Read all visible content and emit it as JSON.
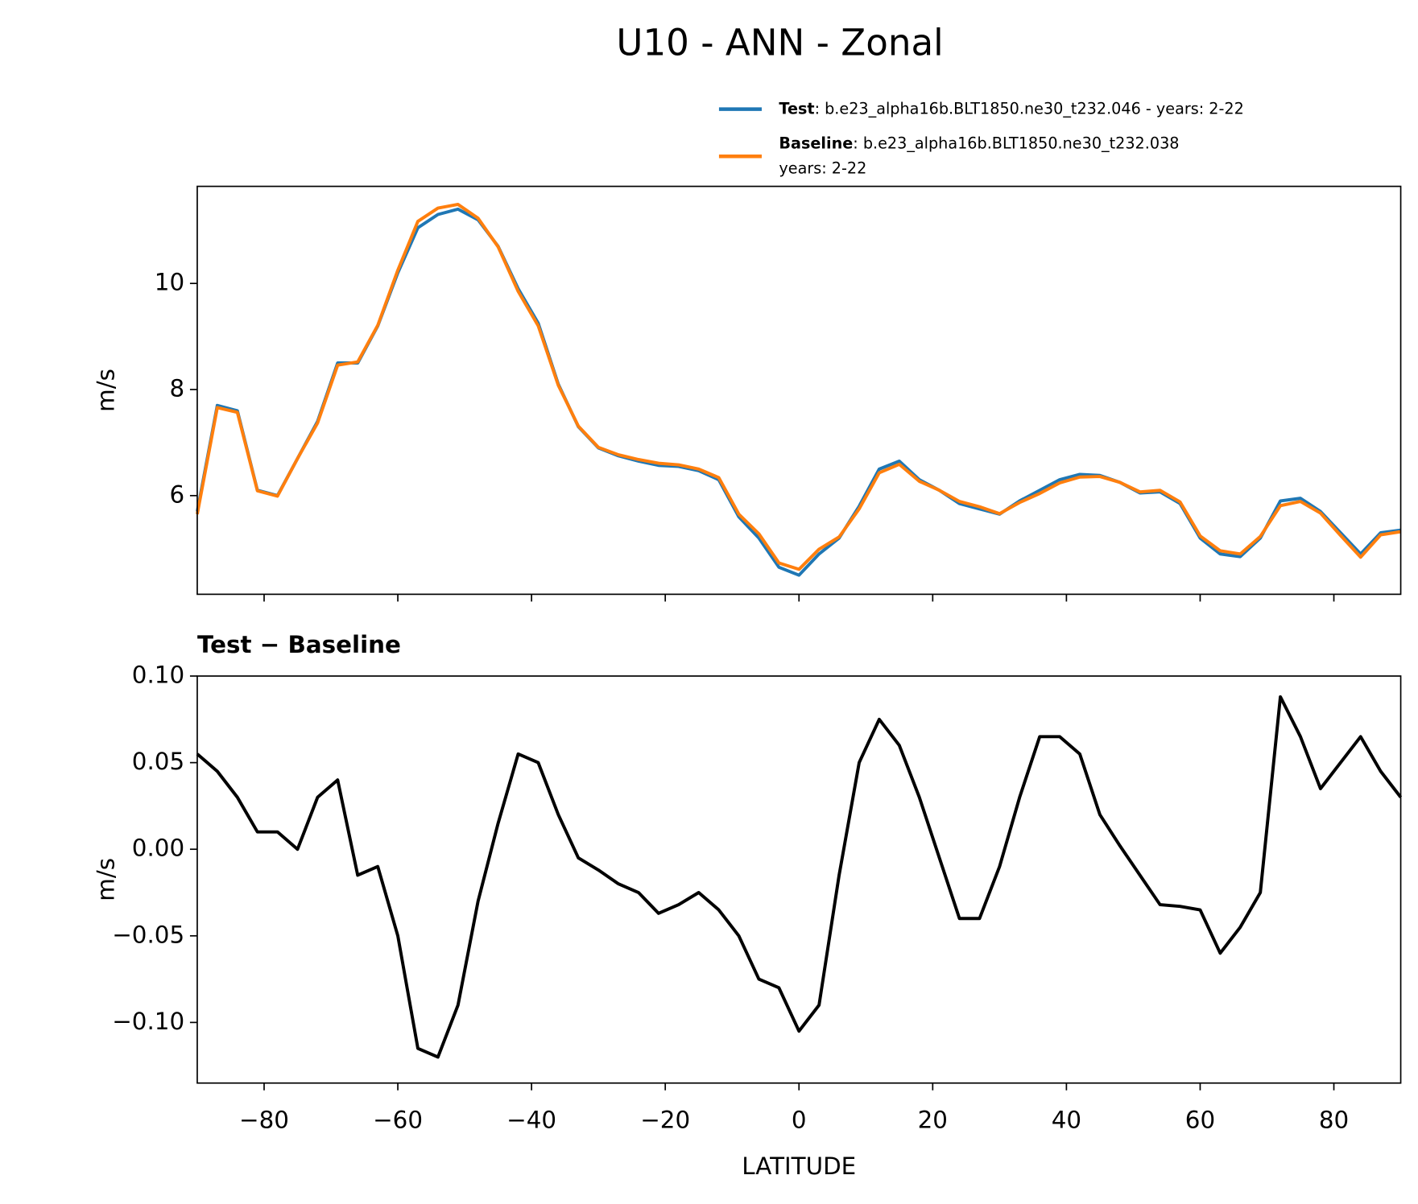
{
  "chart_data": [
    {
      "type": "line",
      "title": "U10 - ANN - Zonal",
      "ylabel": "m/s",
      "x": [
        -90,
        -87,
        -84,
        -81,
        -78,
        -75,
        -72,
        -69,
        -66,
        -63,
        -60,
        -57,
        -54,
        -51,
        -48,
        -45,
        -42,
        -39,
        -36,
        -33,
        -30,
        -27,
        -24,
        -21,
        -18,
        -15,
        -12,
        -9,
        -6,
        -3,
        0,
        3,
        6,
        9,
        12,
        15,
        18,
        21,
        24,
        27,
        30,
        33,
        36,
        39,
        42,
        45,
        48,
        51,
        54,
        57,
        60,
        63,
        66,
        69,
        72,
        75,
        78,
        81,
        84,
        87,
        90
      ],
      "series": [
        {
          "name": "Test",
          "color": "#1f77b4",
          "legend_text": [
            ": b.e23_alpha16b.BLT1850.ne30_t232.046 - years: 2-22"
          ],
          "values": [
            5.7,
            7.7,
            7.6,
            6.1,
            6.0,
            6.7,
            7.4,
            8.5,
            8.5,
            9.2,
            10.2,
            11.05,
            11.3,
            11.4,
            11.2,
            10.7,
            9.9,
            9.25,
            8.1,
            7.3,
            6.9,
            6.75,
            6.65,
            6.57,
            6.55,
            6.47,
            6.3,
            5.6,
            5.2,
            4.65,
            4.5,
            4.9,
            5.2,
            5.8,
            6.5,
            6.65,
            6.3,
            6.1,
            5.85,
            5.75,
            5.65,
            5.9,
            6.1,
            6.3,
            6.4,
            6.38,
            6.25,
            6.05,
            6.07,
            5.85,
            5.2,
            4.9,
            4.85,
            5.2,
            5.9,
            5.95,
            5.7,
            5.3,
            4.9,
            5.3,
            5.35
          ]
        },
        {
          "name": "Baseline",
          "color": "#ff7f0e",
          "legend_text": [
            ": b.e23_alpha16b.BLT1850.ne30_t232.038",
            "years: 2-22"
          ],
          "values": [
            5.65,
            7.66,
            7.57,
            6.09,
            5.99,
            6.7,
            7.37,
            8.46,
            8.52,
            9.21,
            10.25,
            11.17,
            11.42,
            11.49,
            11.23,
            10.69,
            9.85,
            9.2,
            8.08,
            7.31,
            6.91,
            6.77,
            6.68,
            6.61,
            6.58,
            6.5,
            6.34,
            5.65,
            5.28,
            4.73,
            4.61,
            4.99,
            5.22,
            5.75,
            6.43,
            6.59,
            6.27,
            6.1,
            5.89,
            5.79,
            5.66,
            5.87,
            6.04,
            6.24,
            6.35,
            6.36,
            6.25,
            6.07,
            6.1,
            5.88,
            5.24,
            4.96,
            4.9,
            5.23,
            5.81,
            5.89,
            5.67,
            5.25,
            4.84,
            5.26,
            5.32
          ]
        }
      ],
      "xlim": [
        -90,
        90
      ],
      "xticks": [
        -80,
        -60,
        -40,
        -20,
        0,
        20,
        40,
        60,
        80
      ],
      "ylim": [
        4.14,
        11.83
      ],
      "yticks": [
        6,
        8,
        10
      ],
      "legend": "upper right"
    },
    {
      "type": "line",
      "title": "Test − Baseline",
      "ylabel": "m/s",
      "xlabel": "LATITUDE",
      "x": [
        -90,
        -87,
        -84,
        -81,
        -78,
        -75,
        -72,
        -69,
        -66,
        -63,
        -60,
        -57,
        -54,
        -51,
        -48,
        -45,
        -42,
        -39,
        -36,
        -33,
        -30,
        -27,
        -24,
        -21,
        -18,
        -15,
        -12,
        -9,
        -6,
        -3,
        0,
        3,
        6,
        9,
        12,
        15,
        18,
        21,
        24,
        27,
        30,
        33,
        36,
        39,
        42,
        45,
        48,
        51,
        54,
        57,
        60,
        63,
        66,
        69,
        72,
        75,
        78,
        81,
        84,
        87,
        90
      ],
      "series": [
        {
          "color": "#000000",
          "values": [
            0.055,
            0.045,
            0.03,
            0.01,
            0.01,
            0,
            0.03,
            0.04,
            -0.015,
            -0.01,
            -0.05,
            -0.115,
            -0.12,
            -0.09,
            -0.03,
            0.015,
            0.055,
            0.05,
            0.02,
            -0.005,
            -0.012,
            -0.02,
            -0.025,
            -0.037,
            -0.032,
            -0.025,
            -0.035,
            -0.05,
            -0.075,
            -0.08,
            -0.105,
            -0.09,
            -0.015,
            0.05,
            0.075,
            0.06,
            0.03,
            -0.005,
            -0.04,
            -0.04,
            -0.01,
            0.03,
            0.065,
            0.065,
            0.055,
            0.02,
            0.002,
            -0.015,
            -0.032,
            -0.033,
            -0.035,
            -0.06,
            -0.045,
            -0.025,
            0.088,
            0.065,
            0.035,
            0.05,
            0.065,
            0.045,
            0.03
          ]
        }
      ],
      "xlim": [
        -90,
        90
      ],
      "xticks": [
        {
          "value": -80,
          "label": "−80"
        },
        {
          "value": -60,
          "label": "−60"
        },
        {
          "value": -40,
          "label": "−40"
        },
        {
          "value": -20,
          "label": "−20"
        },
        0,
        20,
        40,
        60,
        80
      ],
      "ylim": [
        -0.135,
        0.1
      ],
      "yticks": [
        {
          "value": -0.1,
          "label": "−0.10"
        },
        {
          "value": -0.05,
          "label": "−0.05"
        },
        {
          "value": 0,
          "label": "0.00"
        },
        0.05,
        {
          "value": 0.1,
          "label": "0.10"
        }
      ]
    }
  ]
}
